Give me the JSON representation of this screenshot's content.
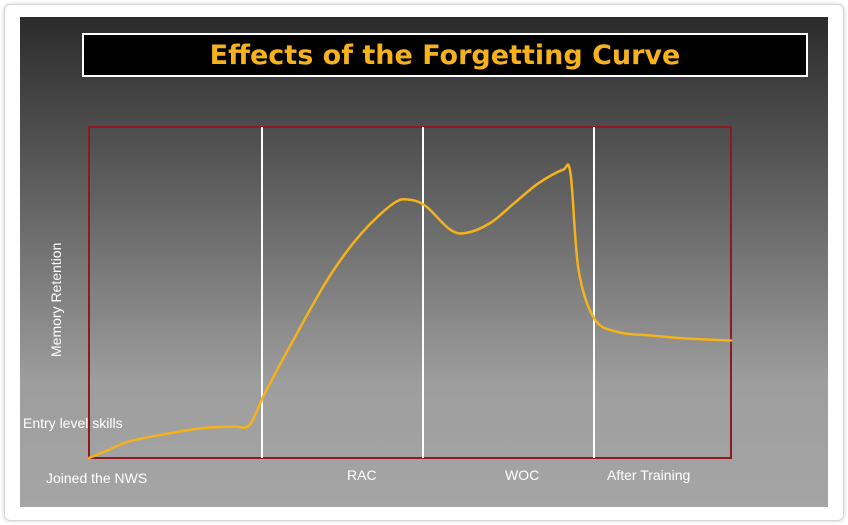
{
  "title": "Effects of the Forgetting Curve",
  "colors": {
    "title_text": "#f5b21a",
    "curve": "#f5b21a",
    "plot_border": "#8b1a22",
    "dividers": "#ffffff",
    "labels": "#ffffff"
  },
  "chart_data": {
    "type": "line",
    "title": "Effects of the Forgetting Curve",
    "ylabel": "Memory Retention",
    "xlabel": "",
    "ylim": [
      0,
      100
    ],
    "x_range": [
      0,
      4
    ],
    "grid": false,
    "phases": [
      "Joined the NWS",
      "RAC",
      "WOC",
      "After Training"
    ],
    "phase_boundaries": [
      1,
      2,
      3
    ],
    "annotations": [
      {
        "text": "Entry level skills",
        "y": 10
      }
    ],
    "series": [
      {
        "x": [
          0.0,
          0.1,
          0.25,
          0.45,
          0.7,
          0.9,
          1.0,
          1.1,
          1.3,
          1.5,
          1.7,
          1.9,
          2.0,
          2.1,
          2.25,
          2.35,
          2.5,
          2.65,
          2.8,
          2.95,
          3.0,
          3.05,
          3.15,
          3.3,
          3.5,
          3.75,
          4.0
        ],
        "y": [
          0,
          2,
          5,
          7,
          9,
          9.5,
          10,
          20,
          38,
          55,
          68,
          77,
          78,
          76,
          69,
          68,
          71,
          77,
          83,
          87,
          86,
          57,
          42,
          38,
          37,
          36,
          35.5
        ]
      }
    ]
  }
}
